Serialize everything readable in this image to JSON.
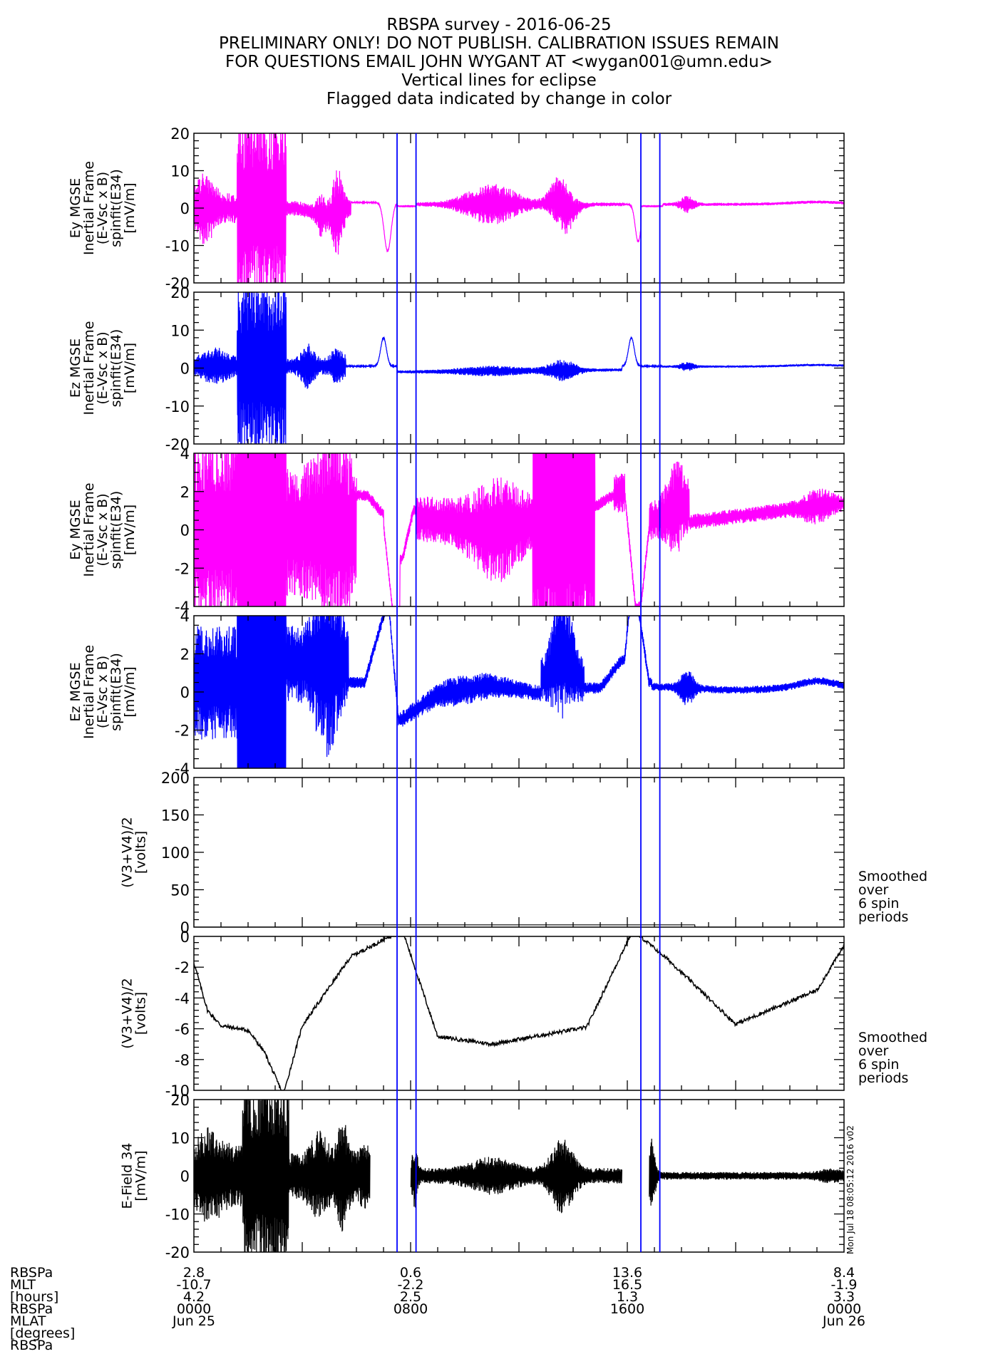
{
  "header": {
    "title": "RBSPA survey - 2016-06-25",
    "lines": [
      "PRELIMINARY ONLY! DO NOT PUBLISH. CALIBRATION ISSUES REMAIN",
      "FOR QUESTIONS EMAIL JOHN WYGANT AT <wygan001@umn.edu>",
      "Vertical lines for eclipse",
      "Flagged data indicated by change in color"
    ]
  },
  "colors": {
    "magenta": "#ff00ff",
    "blue": "#0000ff",
    "black": "#000000",
    "eclipse": "#0000ff"
  },
  "chart_data": [
    {
      "type": "line",
      "ylabel": [
        "Ey MGSE",
        "Inertial Frame",
        "(E-Vsc x B)",
        "spinfit(E34)",
        "[mV/m]"
      ],
      "ylim": [
        -20,
        20
      ],
      "yticks": [
        "20",
        "10",
        "0",
        "-10",
        "-20"
      ],
      "color": "#ff00ff",
      "shape": "ey_full",
      "series": [
        {
          "x": [
            0,
            1.7,
            2.7,
            4.1,
            5.6,
            6.3,
            7.7,
            8.0,
            11.0,
            13.0,
            14.5,
            16.9,
            24
          ],
          "y": [
            0,
            3,
            20,
            -15,
            1.5,
            -11,
            1,
            1,
            6,
            -10,
            1,
            1,
            1.5
          ]
        }
      ]
    },
    {
      "type": "line",
      "ylabel": [
        "Ez MGSE",
        "Inertial Frame",
        "(E-Vsc x B)",
        "spinfit(E34)",
        "[mV/m]"
      ],
      "ylim": [
        -20,
        20
      ],
      "yticks": [
        "20",
        "10",
        "0",
        "-10",
        "-20"
      ],
      "color": "#0000ff",
      "shape": "ez_full",
      "series": [
        {
          "x": [
            0,
            1.7,
            2.4,
            3.2,
            5.3,
            7.0,
            7.7,
            11.0,
            13.0,
            16.2,
            16.9,
            24
          ],
          "y": [
            0,
            4,
            20,
            -20,
            7,
            8,
            -1,
            2,
            0.5,
            8,
            0.5,
            0.5
          ]
        }
      ]
    },
    {
      "type": "line",
      "ylabel": [
        "Ey MGSE",
        "Inertial Frame",
        "(E-Vsc x B)",
        "spinfit(E34)",
        "[mV/m]"
      ],
      "ylim": [
        -4,
        4
      ],
      "yticks": [
        "4",
        "2",
        "0",
        "-2",
        "-4"
      ],
      "color": "#ff00ff",
      "shape": "ey_zoom",
      "series": [
        {
          "x": [
            0,
            1.7,
            3.5,
            5.3,
            6.9,
            8.0,
            10.0,
            12.8,
            15.6,
            16.8,
            20,
            24
          ],
          "y": [
            0,
            4,
            1.5,
            1.3,
            1.8,
            0,
            0.5,
            2,
            -4,
            0.8,
            1.0,
            1.4
          ]
        }
      ]
    },
    {
      "type": "line",
      "ylabel": [
        "Ez MGSE",
        "Inertial Frame",
        "(E-Vsc x B)",
        "spinfit(E34)",
        "[mV/m]"
      ],
      "ylim": [
        -4,
        4
      ],
      "yticks": [
        "4",
        "2",
        "0",
        "-2",
        "-4"
      ],
      "color": "#0000ff",
      "shape": "ez_zoom",
      "series": [
        {
          "x": [
            0,
            1.7,
            3.0,
            5.5,
            7.0,
            7.6,
            9.0,
            13.0,
            16.2,
            16.9,
            20,
            24
          ],
          "y": [
            0,
            4,
            -4,
            1,
            4,
            -1.5,
            -0.5,
            0,
            4,
            0.4,
            0,
            0.5
          ]
        }
      ]
    },
    {
      "type": "line",
      "ylabel": [
        "(V3+V4)/2",
        "[volts]"
      ],
      "ylim": [
        0,
        200
      ],
      "yticks": [
        "200",
        "150",
        "100",
        "50",
        "0"
      ],
      "color": "#000000",
      "shape": "v_full",
      "note": [
        "Smoothed",
        "over",
        "6 spin",
        "periods"
      ],
      "series": [
        {
          "x": [
            0,
            3,
            7.5,
            16,
            24
          ],
          "y": [
            0,
            0,
            2,
            2,
            0
          ]
        }
      ]
    },
    {
      "type": "line",
      "ylabel": [
        "(V3+V4)/2",
        "[volts]"
      ],
      "ylim": [
        -10,
        0
      ],
      "yticks": [
        "0",
        "-2",
        "-4",
        "-6",
        "-8",
        "-10"
      ],
      "color": "#000000",
      "shape": "v_zoom",
      "note": [
        "Smoothed",
        "over",
        "6 spin",
        "periods"
      ],
      "series": [
        {
          "x": [
            0,
            0.5,
            1.0,
            2.0,
            2.6,
            3.3,
            4.0,
            5.8,
            7.7,
            9.0,
            11.0,
            14.5,
            16.2,
            17.5,
            20,
            23,
            24
          ],
          "y": [
            -1.7,
            -4.8,
            -5.8,
            -6.1,
            -7.5,
            -10.3,
            -5.8,
            -1.3,
            0.4,
            -6.5,
            -7.0,
            -5.9,
            0.4,
            -1.5,
            -5.7,
            -3.5,
            -0.6
          ]
        }
      ]
    },
    {
      "type": "line",
      "ylabel": [
        "E-Field 34",
        "[mV/m]"
      ],
      "ylim": [
        -20,
        20
      ],
      "yticks": [
        "20",
        "10",
        "0",
        "-10",
        "-20"
      ],
      "color": "#000000",
      "shape": "e34",
      "series": [
        {
          "x": [
            0,
            1.8,
            3.5,
            5.5,
            6.5,
            8.0,
            11.5,
            15.8,
            16.8,
            24
          ],
          "y": [
            0,
            20,
            10,
            15,
            0,
            4,
            -12,
            0,
            10,
            0
          ]
        }
      ]
    }
  ],
  "eclipse_hours": [
    7.5,
    8.2,
    16.5,
    17.2
  ],
  "stamp": "Mon Jul 18 08:05:12 2016 v02",
  "xaxis": {
    "row_labels": [
      "RBSPa",
      "MLT",
      "[hours]",
      "RBSPa",
      "MLAT",
      "[degrees]",
      "RBSPa"
    ],
    "ticks": [
      {
        "x": 0,
        "lines": [
          "2.8",
          "-10.7",
          "4.2",
          "0000",
          "Jun 25"
        ]
      },
      {
        "x": 8,
        "lines": [
          "0.6",
          "-2.2",
          "2.5",
          "0800",
          ""
        ]
      },
      {
        "x": 16,
        "lines": [
          "13.6",
          "16.5",
          "1.3",
          "1600",
          ""
        ]
      },
      {
        "x": 24,
        "lines": [
          "8.4",
          "-1.9",
          "3.3",
          "0000",
          "Jun 26"
        ]
      }
    ]
  }
}
